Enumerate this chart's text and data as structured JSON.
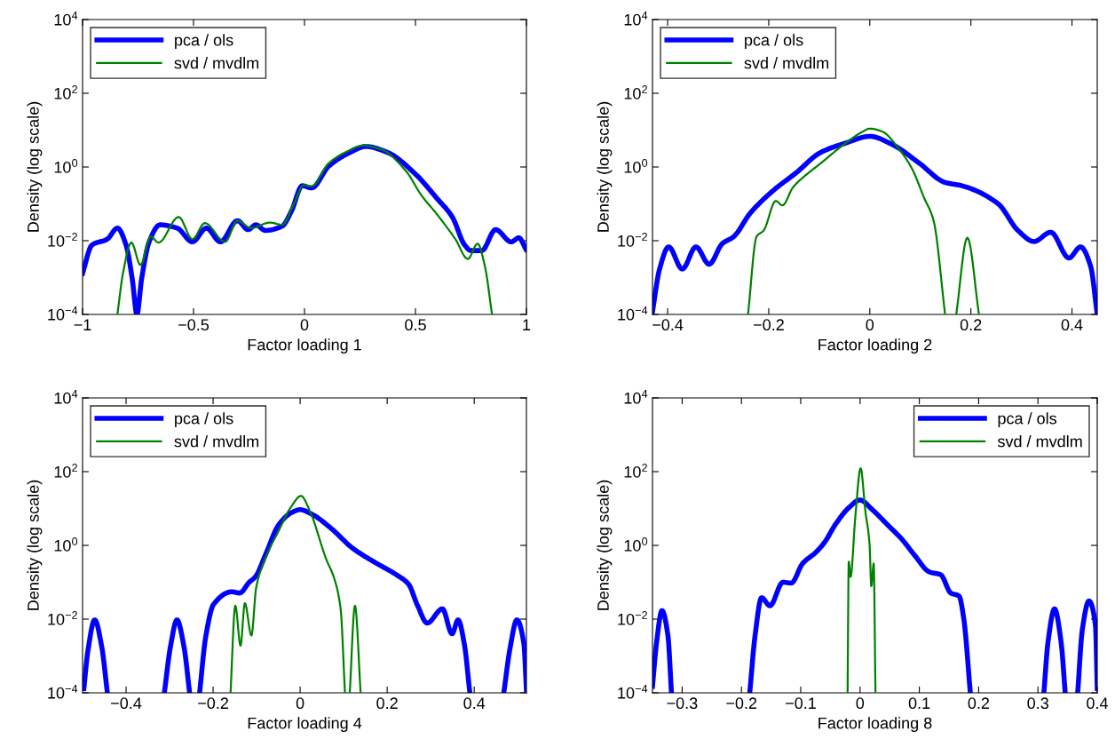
{
  "chart_data": [
    {
      "type": "line",
      "xlabel": "Factor loading 1",
      "ylabel": "Density (log scale)",
      "log": "y",
      "legend": "top left",
      "grid": false,
      "xlim": [
        -1,
        1
      ],
      "xticks": [
        {
          "value": -1,
          "label": "−1"
        },
        {
          "value": -0.5,
          "label": "−0.5"
        },
        0,
        0.5,
        1
      ],
      "ylim": [
        0.0001,
        10000
      ],
      "yticks": [
        {
          "value": 0.0001,
          "label": "10$^{−4}$"
        },
        {
          "value": 0.01,
          "label": "10$^{−2}$"
        },
        {
          "value": 1,
          "label": "10$^{0}$"
        },
        {
          "value": 100,
          "label": "10$^{2}$"
        },
        {
          "value": 10000,
          "label": "10$^{4}$"
        }
      ],
      "series": [
        {
          "name": "pca / ols",
          "color": "#0000ff",
          "x": [
            -1.0,
            -0.958,
            -0.889,
            -0.843,
            -0.804,
            -0.776,
            -0.755,
            -0.734,
            -0.7,
            -0.651,
            -0.574,
            -0.505,
            -0.442,
            -0.379,
            -0.302,
            -0.254,
            -0.219,
            -0.177,
            -0.1,
            -0.059,
            -0.01,
            0.032,
            0.109,
            0.206,
            0.276,
            0.373,
            0.499,
            0.597,
            0.666,
            0.722,
            0.75,
            0.799,
            0.861,
            0.931,
            0.966,
            0.998
          ],
          "values": [
            0.0013,
            0.0076,
            0.011,
            0.022,
            0.0076,
            0.00091,
            0.0001,
            0.00091,
            0.0093,
            0.027,
            0.022,
            0.0093,
            0.022,
            0.0093,
            0.035,
            0.02,
            0.027,
            0.019,
            0.025,
            0.063,
            0.31,
            0.27,
            1.05,
            2.5,
            3.6,
            2.5,
            0.65,
            0.14,
            0.044,
            0.0076,
            0.0054,
            0.0054,
            0.02,
            0.0093,
            0.012,
            0.0058
          ]
        },
        {
          "name": "svd / mvdlm",
          "color": "#008000",
          "x": [
            -0.843,
            -0.818,
            -0.78,
            -0.739,
            -0.693,
            -0.658,
            -0.567,
            -0.505,
            -0.449,
            -0.358,
            -0.302,
            -0.24,
            -0.156,
            -0.1,
            -0.045,
            -0.003,
            0.032,
            0.109,
            0.19,
            0.262,
            0.346,
            0.457,
            0.527,
            0.597,
            0.68,
            0.736,
            0.78,
            0.813,
            0.845
          ],
          "values": [
            0.0001,
            0.0013,
            0.0089,
            0.0022,
            0.013,
            0.0089,
            0.044,
            0.011,
            0.03,
            0.0093,
            0.035,
            0.022,
            0.031,
            0.027,
            0.11,
            0.32,
            0.3,
            1.26,
            2.6,
            3.8,
            3.0,
            0.78,
            0.17,
            0.052,
            0.011,
            0.0032,
            0.0083,
            0.002,
            0.0001
          ]
        }
      ]
    },
    {
      "type": "line",
      "xlabel": "Factor loading 2",
      "ylabel": "Density (log scale)",
      "log": "y",
      "legend": "top left",
      "grid": false,
      "xlim": [
        -0.43,
        0.45
      ],
      "xticks": [
        {
          "value": -0.4,
          "label": "−0.4"
        },
        {
          "value": -0.2,
          "label": "−0.2"
        },
        0,
        0.2,
        0.4
      ],
      "ylim": [
        0.0001,
        10000
      ],
      "yticks": [
        {
          "value": 0.0001,
          "label": "10$^{−4}$"
        },
        {
          "value": 0.01,
          "label": "10$^{−2}$"
        },
        {
          "value": 1,
          "label": "10$^{0}$"
        },
        {
          "value": 100,
          "label": "10$^{2}$"
        },
        {
          "value": 10000,
          "label": "10$^{4}$"
        }
      ],
      "series": [
        {
          "name": "pca / ols",
          "color": "#0000ff",
          "x": [
            -0.43,
            -0.416,
            -0.398,
            -0.371,
            -0.344,
            -0.318,
            -0.292,
            -0.269,
            -0.237,
            -0.191,
            -0.145,
            -0.099,
            -0.047,
            0,
            0.044,
            0.097,
            0.149,
            0.182,
            0.254,
            0.293,
            0.325,
            0.358,
            0.394,
            0.417,
            0.437,
            0.45
          ],
          "values": [
            0.00012,
            0.0017,
            0.0068,
            0.0017,
            0.0068,
            0.0023,
            0.0083,
            0.013,
            0.055,
            0.23,
            0.71,
            2.4,
            4.5,
            6.8,
            4.1,
            1.3,
            0.38,
            0.31,
            0.1,
            0.019,
            0.0095,
            0.017,
            0.0034,
            0.0068,
            0.002,
            0.0001
          ]
        },
        {
          "name": "svd / mvdlm",
          "color": "#008000",
          "x": [
            -0.241,
            -0.224,
            -0.21,
            -0.186,
            -0.173,
            -0.152,
            -0.125,
            -0.099,
            -0.06,
            -0.014,
            0,
            0.025,
            0.054,
            0.084,
            0.107,
            0.126,
            0.149,
            0.16,
            0.171,
            0.193,
            0.216
          ],
          "values": [
            0.0001,
            0.013,
            0.019,
            0.12,
            0.091,
            0.28,
            0.63,
            1.2,
            3.3,
            9.1,
            11,
            9.1,
            3.6,
            0.87,
            0.15,
            0.036,
            0.0001,
            null,
            0.0001,
            0.012,
            0.0001
          ]
        }
      ]
    },
    {
      "type": "line",
      "xlabel": "Factor loading 4",
      "ylabel": "Density (log scale)",
      "log": "y",
      "legend": "top left",
      "grid": false,
      "xlim": [
        -0.5,
        0.52
      ],
      "xticks": [
        {
          "value": -0.4,
          "label": "−0.4"
        },
        {
          "value": -0.2,
          "label": "−0.2"
        },
        0,
        0.2,
        0.4
      ],
      "ylim": [
        0.0001,
        10000
      ],
      "yticks": [
        {
          "value": 0.0001,
          "label": "10$^{−4}$"
        },
        {
          "value": 0.01,
          "label": "10$^{−2}$"
        },
        {
          "value": 1,
          "label": "10$^{0}$"
        },
        {
          "value": 100,
          "label": "10$^{2}$"
        },
        {
          "value": 10000,
          "label": "10$^{4}$"
        }
      ],
      "series": [
        {
          "name": "pca / ols",
          "color": "#0000ff",
          "x": [
            -0.497,
            -0.488,
            -0.472,
            -0.456,
            -0.443,
            -0.38,
            -0.312,
            -0.298,
            -0.283,
            -0.267,
            -0.254,
            -0.24,
            -0.231,
            -0.217,
            -0.199,
            -0.157,
            -0.139,
            -0.117,
            -0.103,
            -0.078,
            -0.05,
            -0.021,
            0,
            0.028,
            0.071,
            0.121,
            0.171,
            0.221,
            0.249,
            0.27,
            0.292,
            0.327,
            0.349,
            0.363,
            0.377,
            0.39,
            0.43,
            0.468,
            0.483,
            0.498,
            0.514,
            0.52
          ],
          "values": [
            0.00013,
            0.0013,
            0.0095,
            0.0018,
            0.0001,
            null,
            0.0001,
            0.0018,
            0.0095,
            0.0018,
            0.0001,
            null,
            0.0001,
            0.0033,
            0.025,
            0.055,
            0.051,
            0.1,
            0.14,
            0.62,
            3.5,
            7.6,
            9.3,
            6.9,
            2.9,
            0.83,
            0.35,
            0.16,
            0.089,
            0.023,
            0.0078,
            0.019,
            0.004,
            0.0095,
            0.0022,
            0.0001,
            null,
            0.0001,
            0.0018,
            0.0095,
            0.0022,
            0.00012
          ]
        },
        {
          "name": "svd / mvdlm",
          "color": "#008000",
          "x": [
            -0.16,
            -0.149,
            -0.137,
            -0.127,
            -0.112,
            -0.101,
            -0.078,
            -0.05,
            -0.021,
            0.002,
            0.021,
            0.06,
            0.078,
            0.093,
            0.103,
            0.108,
            0.114,
            0.126,
            0.139
          ],
          "values": [
            0.0001,
            0.023,
            0.0019,
            0.027,
            0.0036,
            0.072,
            0.51,
            2.4,
            11,
            22,
            9.3,
            0.42,
            0.13,
            0.019,
            0.0001,
            null,
            0.0001,
            0.023,
            0.0001
          ]
        }
      ]
    },
    {
      "type": "line",
      "xlabel": "Factor loading 8",
      "ylabel": "Density (log scale)",
      "log": "y",
      "legend": "top right",
      "grid": false,
      "xlim": [
        -0.35,
        0.4
      ],
      "xticks": [
        {
          "value": -0.3,
          "label": "−0.3"
        },
        {
          "value": -0.2,
          "label": "−0.2"
        },
        {
          "value": -0.1,
          "label": "−0.1"
        },
        0,
        0.1,
        0.2,
        0.3,
        0.4
      ],
      "ylim": [
        0.0001,
        10000
      ],
      "yticks": [
        {
          "value": 0.0001,
          "label": "10$^{−4}$"
        },
        {
          "value": 0.01,
          "label": "10$^{−2}$"
        },
        {
          "value": 1,
          "label": "10$^{0}$"
        },
        {
          "value": 100,
          "label": "10$^{2}$"
        },
        {
          "value": 10000,
          "label": "10$^{4}$"
        }
      ],
      "series": [
        {
          "name": "pca / ols",
          "color": "#0000ff",
          "x": [
            -0.35,
            -0.343,
            -0.334,
            -0.324,
            -0.318,
            -0.25,
            -0.186,
            -0.177,
            -0.166,
            -0.152,
            -0.13,
            -0.116,
            -0.097,
            -0.074,
            -0.06,
            -0.041,
            -0.019,
            0,
            0.02,
            0.048,
            0.07,
            0.092,
            0.117,
            0.136,
            0.153,
            0.167,
            0.175,
            0.186,
            0.25,
            0.31,
            0.317,
            0.328,
            0.339,
            0.346,
            0.356,
            0.367,
            0.375,
            0.386,
            0.397,
            0.4
          ],
          "values": [
            0.00015,
            0.0024,
            0.017,
            0.0036,
            0.0001,
            null,
            0.0001,
            0.0036,
            0.038,
            0.023,
            0.1,
            0.095,
            0.32,
            0.66,
            1.2,
            3.8,
            10.5,
            17,
            9.5,
            3.4,
            1.5,
            0.54,
            0.19,
            0.16,
            0.051,
            0.042,
            0.01,
            0.0001,
            null,
            0.0001,
            0.0024,
            0.019,
            0.0024,
            0.0001,
            null,
            0.0001,
            0.0054,
            0.031,
            0.0066,
            0.00013
          ]
        },
        {
          "name": "svd / mvdlm",
          "color": "#008000",
          "x": [
            -0.021,
            -0.019,
            -0.016,
            -0.008,
            0.001,
            0.009,
            0.016,
            0.019,
            0.023,
            0.026
          ],
          "values": [
            0.0001,
            0.36,
            0.14,
            5.8,
            123,
            8.5,
            1.1,
            0.078,
            0.32,
            0.0001
          ]
        }
      ]
    }
  ]
}
